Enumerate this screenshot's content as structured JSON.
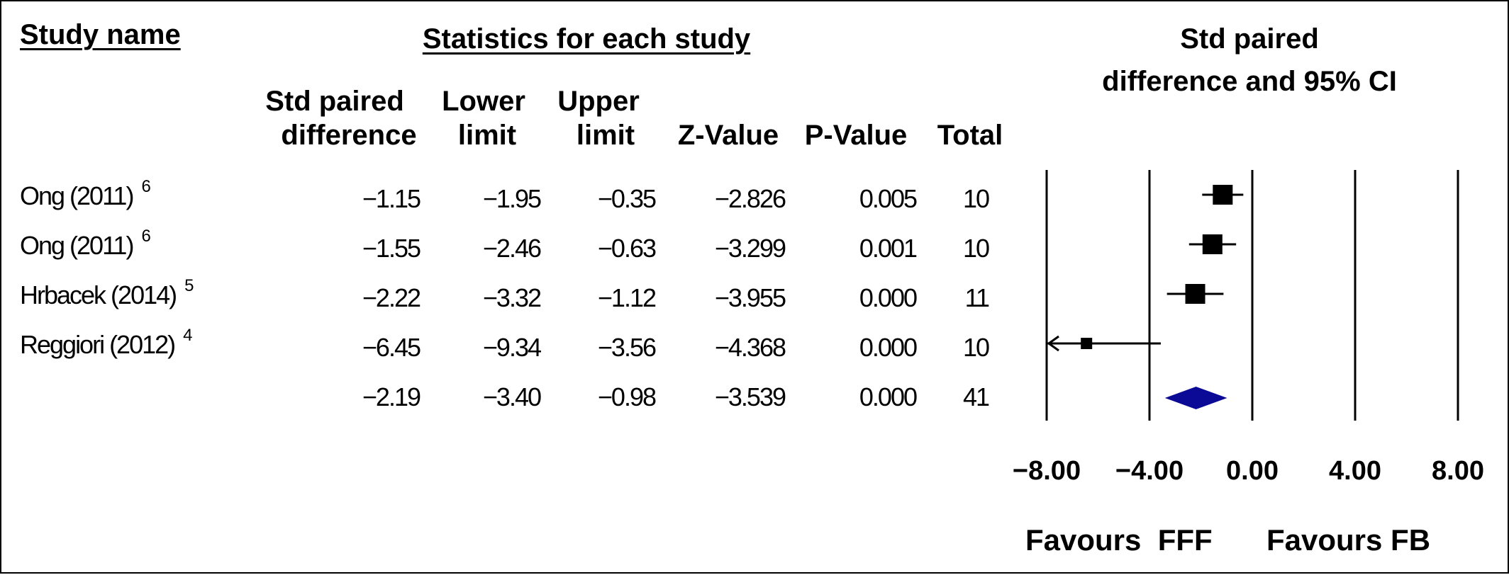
{
  "headers": {
    "study_name": "Study name",
    "statistics": "Statistics for each study",
    "plot_title_line1": "Std paired",
    "plot_title_line2": "difference and 95% CI",
    "columns": [
      {
        "line1": "Std paired",
        "line2": "difference"
      },
      {
        "line1": "Lower",
        "line2": "limit"
      },
      {
        "line1": "Upper",
        "line2": "limit"
      },
      {
        "line1": "",
        "line2": "Z-Value"
      },
      {
        "line1": "",
        "line2": "P-Value"
      },
      {
        "line1": "",
        "line2": "Total"
      }
    ]
  },
  "rows": [
    {
      "study": "Ong (2011)",
      "ref": "6",
      "effect": "−1.15",
      "lower": "−1.95",
      "upper": "−0.35",
      "z": "−2.826",
      "p": "0.005",
      "total": "10"
    },
    {
      "study": "Ong (2011)",
      "ref": "6",
      "effect": "−1.55",
      "lower": "−2.46",
      "upper": "−0.63",
      "z": "−3.299",
      "p": "0.001",
      "total": "10"
    },
    {
      "study": "Hrbacek (2014)",
      "ref": "5",
      "effect": "−2.22",
      "lower": "−3.32",
      "upper": "−1.12",
      "z": "−3.955",
      "p": "0.000",
      "total": "11"
    },
    {
      "study": "Reggiori (2012)",
      "ref": "4",
      "effect": "−6.45",
      "lower": "−9.34",
      "upper": "−3.56",
      "z": "−4.368",
      "p": "0.000",
      "total": "10"
    }
  ],
  "summary": {
    "effect": "−2.19",
    "lower": "−3.40",
    "upper": "−0.98",
    "z": "−3.539",
    "p": "0.000",
    "total": "41"
  },
  "favours_left": "Favours  FFF",
  "favours_right": "Favours FB",
  "chart_data": {
    "type": "forest",
    "title": "Std paired difference and 95% CI",
    "xlim": [
      -8,
      8
    ],
    "ticks": [
      -8,
      -4,
      0,
      4,
      8
    ],
    "tick_labels": [
      "−8.00",
      "−4.00",
      "0.00",
      "4.00",
      "8.00"
    ],
    "studies": [
      {
        "label": "Ong (2011)",
        "effect": -1.15,
        "lower": -1.95,
        "upper": -0.35,
        "weight": "large"
      },
      {
        "label": "Ong (2011)",
        "effect": -1.55,
        "lower": -2.46,
        "upper": -0.63,
        "weight": "large"
      },
      {
        "label": "Hrbacek (2014)",
        "effect": -2.22,
        "lower": -3.32,
        "upper": -1.12,
        "weight": "large"
      },
      {
        "label": "Reggiori (2012)",
        "effect": -6.45,
        "lower": -9.34,
        "upper": -3.56,
        "weight": "small",
        "lower_truncated": true
      }
    ],
    "summary": {
      "effect": -2.19,
      "lower": -3.4,
      "upper": -0.98
    },
    "summary_color": "#0A0A96",
    "marker_color": "#000000"
  }
}
